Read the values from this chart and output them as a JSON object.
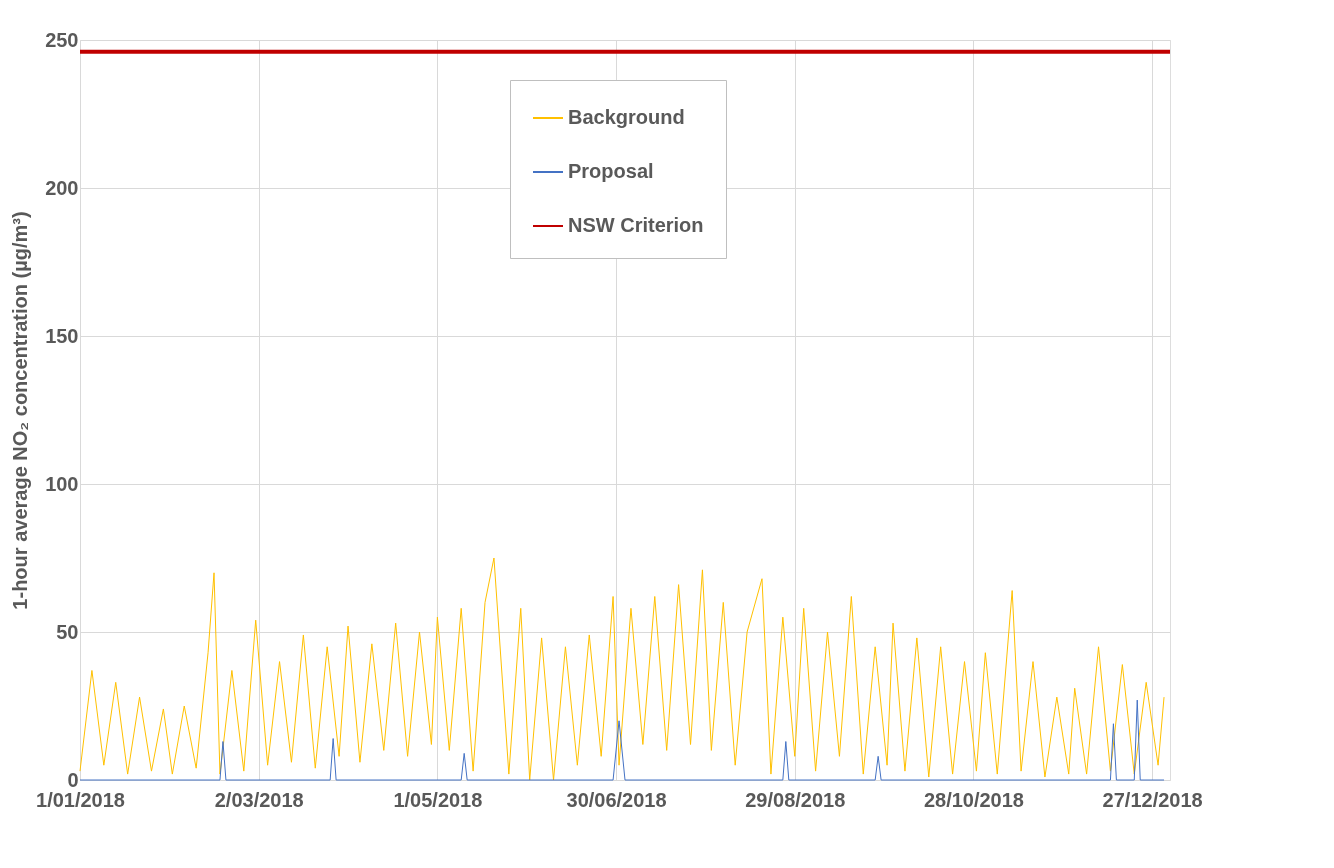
{
  "chart_data": {
    "type": "line",
    "ylabel": "1-hour average NO₂ concentration (µg/m³)",
    "xlim": [
      "2018-01-01",
      "2019-01-02"
    ],
    "xticks": [
      {
        "value": "2018-01-01",
        "label": "1/01/2018"
      },
      {
        "value": "2018-03-02",
        "label": "2/03/2018"
      },
      {
        "value": "2018-05-01",
        "label": "1/05/2018"
      },
      {
        "value": "2018-06-30",
        "label": "30/06/2018"
      },
      {
        "value": "2018-08-29",
        "label": "29/08/2018"
      },
      {
        "value": "2018-10-28",
        "label": "28/10/2018"
      },
      {
        "value": "2018-12-27",
        "label": "27/12/2018"
      }
    ],
    "ylim": [
      0,
      250
    ],
    "yticks": [
      0,
      50,
      100,
      150,
      200,
      250
    ],
    "grid": true,
    "legend": "top",
    "series": [
      {
        "name": "Background",
        "color": "#ffc000",
        "x": [
          "2018-01-01",
          "2018-01-05",
          "2018-01-09",
          "2018-01-13",
          "2018-01-17",
          "2018-01-21",
          "2018-01-25",
          "2018-01-29",
          "2018-02-01",
          "2018-02-05",
          "2018-02-09",
          "2018-02-13",
          "2018-02-15",
          "2018-02-17",
          "2018-02-21",
          "2018-02-25",
          "2018-03-01",
          "2018-03-05",
          "2018-03-09",
          "2018-03-13",
          "2018-03-17",
          "2018-03-21",
          "2018-03-25",
          "2018-03-29",
          "2018-04-01",
          "2018-04-05",
          "2018-04-09",
          "2018-04-13",
          "2018-04-17",
          "2018-04-21",
          "2018-04-25",
          "2018-04-29",
          "2018-05-01",
          "2018-05-05",
          "2018-05-09",
          "2018-05-13",
          "2018-05-17",
          "2018-05-20",
          "2018-05-25",
          "2018-05-29",
          "2018-06-01",
          "2018-06-05",
          "2018-06-09",
          "2018-06-13",
          "2018-06-17",
          "2018-06-21",
          "2018-06-25",
          "2018-06-29",
          "2018-07-01",
          "2018-07-05",
          "2018-07-09",
          "2018-07-13",
          "2018-07-17",
          "2018-07-21",
          "2018-07-25",
          "2018-07-29",
          "2018-08-01",
          "2018-08-05",
          "2018-08-09",
          "2018-08-13",
          "2018-08-18",
          "2018-08-21",
          "2018-08-25",
          "2018-08-29",
          "2018-09-01",
          "2018-09-05",
          "2018-09-09",
          "2018-09-13",
          "2018-09-17",
          "2018-09-21",
          "2018-09-25",
          "2018-09-29",
          "2018-10-01",
          "2018-10-05",
          "2018-10-09",
          "2018-10-13",
          "2018-10-17",
          "2018-10-21",
          "2018-10-25",
          "2018-10-29",
          "2018-11-01",
          "2018-11-05",
          "2018-11-10",
          "2018-11-13",
          "2018-11-17",
          "2018-11-21",
          "2018-11-25",
          "2018-11-29",
          "2018-12-01",
          "2018-12-05",
          "2018-12-09",
          "2018-12-13",
          "2018-12-17",
          "2018-12-21",
          "2018-12-25",
          "2018-12-29",
          "2018-12-31"
        ],
        "values": [
          3,
          37,
          5,
          33,
          2,
          28,
          3,
          24,
          2,
          25,
          4,
          43,
          70,
          2,
          37,
          3,
          54,
          5,
          40,
          6,
          49,
          4,
          45,
          8,
          52,
          6,
          46,
          10,
          53,
          8,
          50,
          12,
          55,
          10,
          58,
          3,
          60,
          75,
          2,
          58,
          0,
          48,
          0,
          45,
          5,
          49,
          8,
          62,
          5,
          58,
          12,
          62,
          10,
          66,
          12,
          71,
          10,
          60,
          5,
          50,
          68,
          2,
          55,
          8,
          58,
          3,
          50,
          8,
          62,
          2,
          45,
          5,
          53,
          3,
          48,
          1,
          45,
          2,
          40,
          3,
          43,
          2,
          64,
          3,
          40,
          1,
          28,
          2,
          31,
          2,
          45,
          3,
          39,
          2,
          33,
          5,
          28
        ]
      },
      {
        "name": "Proposal",
        "color": "#4472c4",
        "x": [
          "2018-01-01",
          "2018-02-17",
          "2018-02-18",
          "2018-02-19",
          "2018-03-26",
          "2018-03-27",
          "2018-03-28",
          "2018-05-09",
          "2018-05-10",
          "2018-05-11",
          "2018-06-29",
          "2018-07-01",
          "2018-07-03",
          "2018-08-25",
          "2018-08-26",
          "2018-08-27",
          "2018-09-25",
          "2018-09-26",
          "2018-09-27",
          "2018-12-13",
          "2018-12-14",
          "2018-12-15",
          "2018-12-21",
          "2018-12-22",
          "2018-12-23",
          "2018-12-31"
        ],
        "values": [
          0,
          0,
          13,
          0,
          0,
          14,
          0,
          0,
          9,
          0,
          0,
          20,
          0,
          0,
          13,
          0,
          0,
          8,
          0,
          0,
          19,
          0,
          0,
          27,
          0,
          0
        ]
      }
    ],
    "ref_lines": [
      {
        "axis": "y",
        "value": 246,
        "label": "NSW Criterion",
        "color": "#c00000"
      }
    ]
  }
}
